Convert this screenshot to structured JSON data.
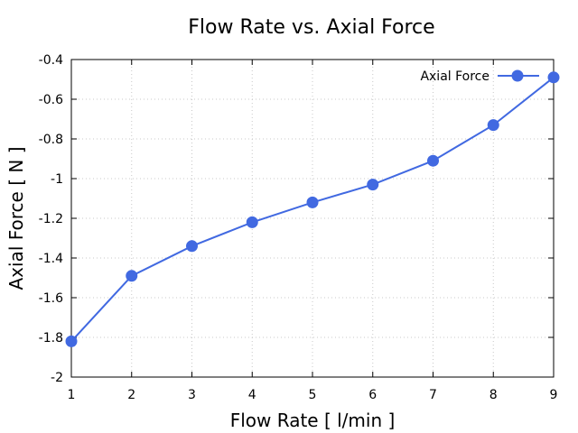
{
  "chart_data": {
    "type": "line",
    "title": "Flow Rate vs. Axial Force",
    "xlabel": "Flow Rate [ l/min ]",
    "ylabel": "Axial Force [ N ]",
    "xlim": [
      1,
      9
    ],
    "ylim": [
      -2,
      -0.4
    ],
    "x_ticks": [
      "1",
      "2",
      "3",
      "4",
      "5",
      "6",
      "7",
      "8",
      "9"
    ],
    "y_ticks": [
      "-2",
      "-1.8",
      "-1.6",
      "-1.4",
      "-1.2",
      "-1",
      "-0.8",
      "-0.6",
      "-0.4"
    ],
    "grid": true,
    "legend_position": "top-right",
    "series": [
      {
        "name": "Axial Force",
        "color": "#4169e1",
        "x": [
          1,
          2,
          3,
          4,
          5,
          6,
          7,
          8,
          9
        ],
        "y": [
          -1.82,
          -1.49,
          -1.34,
          -1.22,
          -1.12,
          -1.03,
          -0.91,
          -0.73,
          -0.49
        ]
      }
    ]
  }
}
